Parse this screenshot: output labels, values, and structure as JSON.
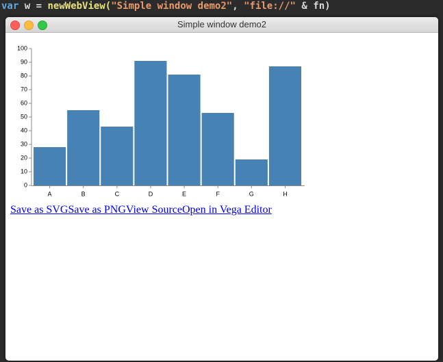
{
  "editor": {
    "tokens": [
      "var",
      "w",
      "=",
      "newWebView(",
      "\"Simple window demo2\"",
      ",",
      "\"file://\"",
      "&",
      "fn)"
    ]
  },
  "window": {
    "title": "Simple window demo2"
  },
  "chart_data": {
    "type": "bar",
    "categories": [
      "A",
      "B",
      "C",
      "D",
      "E",
      "F",
      "G",
      "H"
    ],
    "values": [
      28,
      55,
      43,
      91,
      81,
      53,
      19,
      87
    ],
    "color": "#4682b4",
    "ylim": [
      0,
      100
    ],
    "yticks": [
      0,
      10,
      20,
      30,
      40,
      50,
      60,
      70,
      80,
      90,
      100
    ]
  },
  "links": [
    "Save as SVG",
    "Save as PNG",
    "View Source",
    "Open in Vega Editor"
  ]
}
